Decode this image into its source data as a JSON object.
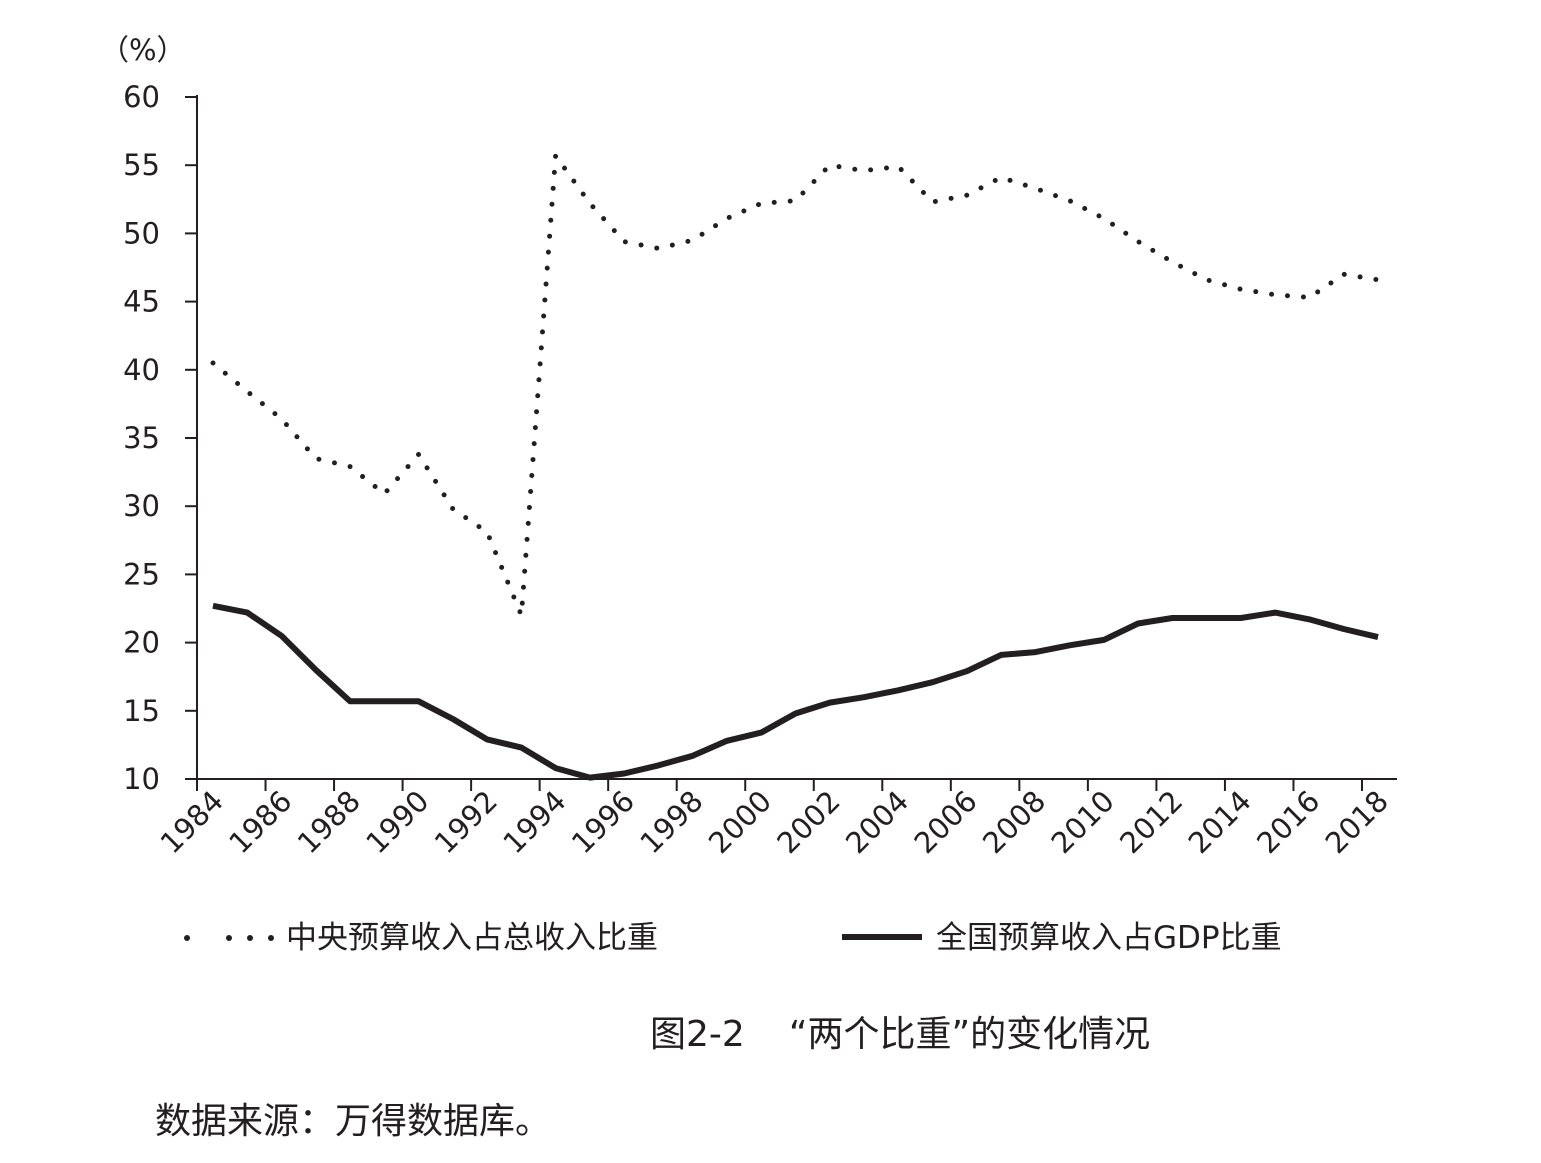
{
  "chart_data": {
    "type": "line",
    "ylabel": "（%）",
    "ylim": [
      10,
      60
    ],
    "yticks": [
      "10",
      "15",
      "20",
      "25",
      "30",
      "35",
      "40",
      "45",
      "50",
      "55",
      "60"
    ],
    "xlim": [
      1984,
      2018
    ],
    "xticks": [
      "1984",
      "1986",
      "1988",
      "1990",
      "1992",
      "1994",
      "1996",
      "1998",
      "2000",
      "2002",
      "2004",
      "2006",
      "2008",
      "2010",
      "2012",
      "2014",
      "2016",
      "2018"
    ],
    "grid": false,
    "legend_position": "bottom",
    "series": [
      {
        "name": "中央预算收入占总收入比重",
        "style": "dotted",
        "x": [
          1984,
          1985,
          1986,
          1987,
          1988,
          1989,
          1990,
          1991,
          1992,
          1993,
          1994,
          1995,
          1996,
          1997,
          1998,
          1999,
          2000,
          2001,
          2002,
          2003,
          2004,
          2005,
          2006,
          2007,
          2008,
          2009,
          2010,
          2011,
          2012,
          2013,
          2014,
          2015,
          2016,
          2017,
          2018
        ],
        "values": [
          40.5,
          38.4,
          36.4,
          33.5,
          32.9,
          30.9,
          33.8,
          29.8,
          28.1,
          22.0,
          55.7,
          52.2,
          49.4,
          48.9,
          49.5,
          51.1,
          52.2,
          52.4,
          55.0,
          54.6,
          54.9,
          52.3,
          52.8,
          54.1,
          53.3,
          52.4,
          51.1,
          49.4,
          47.9,
          46.6,
          45.9,
          45.5,
          45.3,
          47.0,
          46.6
        ]
      },
      {
        "name": "全国预算收入占GDP比重",
        "style": "solid",
        "x": [
          1984,
          1985,
          1986,
          1987,
          1988,
          1989,
          1990,
          1991,
          1992,
          1993,
          1994,
          1995,
          1996,
          1997,
          1998,
          1999,
          2000,
          2001,
          2002,
          2003,
          2004,
          2005,
          2006,
          2007,
          2008,
          2009,
          2010,
          2011,
          2012,
          2013,
          2014,
          2015,
          2016,
          2017,
          2018
        ],
        "values": [
          22.7,
          22.2,
          20.5,
          18.0,
          15.7,
          15.7,
          15.7,
          14.4,
          12.9,
          12.3,
          10.8,
          10.1,
          10.4,
          11.0,
          11.7,
          12.8,
          13.4,
          14.8,
          15.6,
          16.0,
          16.5,
          17.1,
          17.9,
          19.1,
          19.3,
          19.8,
          20.2,
          21.4,
          21.8,
          21.8,
          21.8,
          22.2,
          21.7,
          21.0,
          20.4
        ]
      }
    ]
  },
  "caption": {
    "figure_number": "图2-2",
    "title": "“两个比重”的变化情况"
  },
  "source": "数据来源：万得数据库。",
  "colors": {
    "ink": "#231f20",
    "background": "#ffffff"
  }
}
